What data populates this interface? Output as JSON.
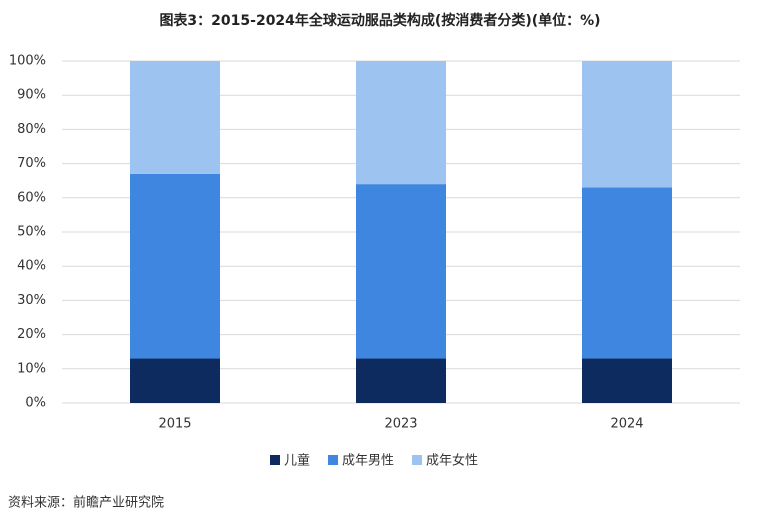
{
  "chart_data": {
    "type": "stacked_bar",
    "title": "图表3：2015-2024年全球运动服品类构成(按消费者分类)(单位：%)",
    "source": "资料来源：前瞻产业研究院",
    "categories": [
      "2015",
      "2023",
      "2024"
    ],
    "series": [
      {
        "name": "儿童",
        "color": "#0d2b5e",
        "values": [
          13,
          13,
          13
        ]
      },
      {
        "name": "成年男性",
        "color": "#3f86e0",
        "values": [
          54,
          51,
          50
        ]
      },
      {
        "name": "成年女性",
        "color": "#9dc3f0",
        "values": [
          33,
          36,
          37
        ]
      }
    ],
    "ylim": [
      0,
      100
    ],
    "yticks": [
      {
        "value": 0,
        "label": "0%"
      },
      {
        "value": 10,
        "label": "10%"
      },
      {
        "value": 20,
        "label": "20%"
      },
      {
        "value": 30,
        "label": "30%"
      },
      {
        "value": 40,
        "label": "40%"
      },
      {
        "value": 50,
        "label": "50%"
      },
      {
        "value": 60,
        "label": "60%"
      },
      {
        "value": 70,
        "label": "70%"
      },
      {
        "value": 80,
        "label": "80%"
      },
      {
        "value": 90,
        "label": "90%"
      },
      {
        "value": 100,
        "label": "100%"
      }
    ],
    "grid": true,
    "legend": "bottom"
  }
}
